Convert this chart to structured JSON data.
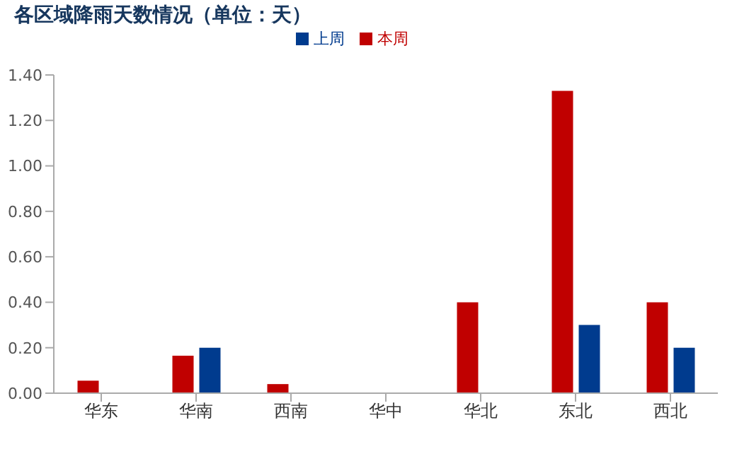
{
  "chart_data": {
    "type": "bar",
    "title": "各区域降雨天数情况（单位：天）",
    "categories": [
      "华东",
      "华南",
      "西南",
      "华中",
      "华北",
      "东北",
      "西北"
    ],
    "series": [
      {
        "name": "本周",
        "color": "#c00000",
        "values": [
          0.055,
          0.165,
          0.04,
          0,
          0.4,
          1.33,
          0.4
        ]
      },
      {
        "name": "上周",
        "color": "#003b8e",
        "values": [
          0,
          0.2,
          0,
          0,
          0,
          0.3,
          0.2
        ]
      }
    ],
    "ylim": [
      0,
      1.4
    ],
    "yticks": [
      {
        "value": 0,
        "label": "0.00"
      },
      {
        "value": 0.2,
        "label": "0.20"
      },
      {
        "value": 0.4,
        "label": "0.40"
      },
      {
        "value": 0.6,
        "label": "0.60"
      },
      {
        "value": 0.8,
        "label": "0.80"
      },
      {
        "value": 1,
        "label": "1.00"
      },
      {
        "value": 1.2,
        "label": "1.20"
      },
      {
        "value": 1.4,
        "label": "1.40"
      }
    ],
    "grid": false,
    "legend": "top"
  }
}
